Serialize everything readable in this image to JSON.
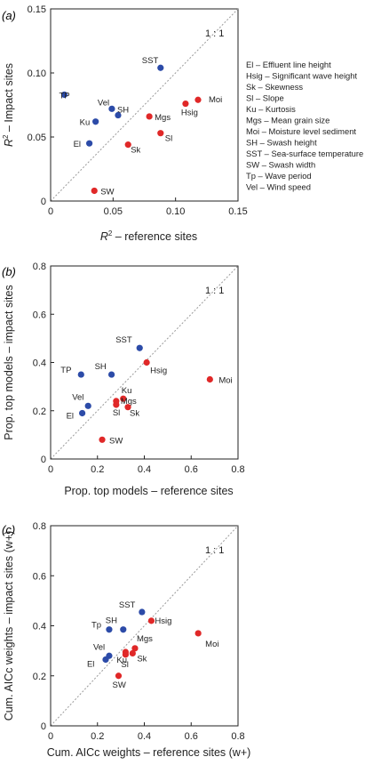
{
  "colors": {
    "impact": "#e02828",
    "reference": "#2c4ba8",
    "axis": "#222222",
    "diagonal": "#9a9a9a"
  },
  "legend": [
    "El – Effluent line height",
    "Hsig – Significant wave height",
    "Sk – Skewness",
    "Sl – Slope",
    "Ku – Kurtosis",
    "Mgs – Mean grain size",
    "Moi – Moisture level sediment",
    "SH – Swash height",
    "SST – Sea-surface temperature",
    "SW – Swash width",
    "Tp – Wave period",
    "Vel – Wind speed"
  ],
  "chart_data": [
    {
      "type": "scatter",
      "panel": "(a)",
      "xlabel_pre": "R",
      "xlabel_sup": "2",
      "xlabel_post": " – reference sites",
      "ylabel_pre": "R",
      "ylabel_sup": "2",
      "ylabel_post": " – Impact sites",
      "xlim": [
        0,
        0.15
      ],
      "ylim": [
        0,
        0.15
      ],
      "xticks": [
        0,
        0.05,
        0.1,
        0.15
      ],
      "yticks": [
        0,
        0.05,
        0.1,
        0.15
      ],
      "xtick_labels": [
        "0",
        "0.05",
        "0.10",
        "0.15"
      ],
      "ytick_labels": [
        "0",
        "0.05",
        "0.10",
        "0.15"
      ],
      "diag_label": "1 : 1",
      "points": [
        {
          "label": "SST",
          "x": 0.088,
          "y": 0.104,
          "group": "reference"
        },
        {
          "label": "TP",
          "x": 0.011,
          "y": 0.083,
          "group": "reference"
        },
        {
          "label": "Vel",
          "x": 0.049,
          "y": 0.072,
          "group": "reference"
        },
        {
          "label": "SH",
          "x": 0.054,
          "y": 0.067,
          "group": "reference"
        },
        {
          "label": "Ku",
          "x": 0.036,
          "y": 0.062,
          "group": "reference"
        },
        {
          "label": "El",
          "x": 0.031,
          "y": 0.045,
          "group": "reference"
        },
        {
          "label": "Moi",
          "x": 0.118,
          "y": 0.079,
          "group": "impact"
        },
        {
          "label": "Hsig",
          "x": 0.108,
          "y": 0.076,
          "group": "impact"
        },
        {
          "label": "Mgs",
          "x": 0.079,
          "y": 0.066,
          "group": "impact"
        },
        {
          "label": "Sl",
          "x": 0.088,
          "y": 0.053,
          "group": "impact"
        },
        {
          "label": "Sk",
          "x": 0.062,
          "y": 0.044,
          "group": "impact"
        },
        {
          "label": "SW",
          "x": 0.035,
          "y": 0.008,
          "group": "impact"
        }
      ]
    },
    {
      "type": "scatter",
      "panel": "(b)",
      "xlabel_pre": "Prop. top models – reference sites",
      "xlabel_sup": "",
      "xlabel_post": "",
      "ylabel_pre": "Prop. top models – impact sites",
      "ylabel_sup": "",
      "ylabel_post": "",
      "xlim": [
        0,
        0.8
      ],
      "ylim": [
        0,
        0.8
      ],
      "xticks": [
        0,
        0.2,
        0.4,
        0.6,
        0.8
      ],
      "yticks": [
        0,
        0.2,
        0.4,
        0.6,
        0.8
      ],
      "xtick_labels": [
        "0",
        "0.2",
        "0.4",
        "0.6",
        "0.8"
      ],
      "ytick_labels": [
        "0",
        "0.2",
        "0.4",
        "0.6",
        "0.8"
      ],
      "diag_label": "1 : 1",
      "points": [
        {
          "label": "SST",
          "x": 0.38,
          "y": 0.46,
          "group": "reference"
        },
        {
          "label": "TP",
          "x": 0.13,
          "y": 0.35,
          "group": "reference"
        },
        {
          "label": "SH",
          "x": 0.26,
          "y": 0.35,
          "group": "reference"
        },
        {
          "label": "Vel",
          "x": 0.16,
          "y": 0.22,
          "group": "reference"
        },
        {
          "label": "El",
          "x": 0.135,
          "y": 0.19,
          "group": "reference"
        },
        {
          "label": "Hsig",
          "x": 0.41,
          "y": 0.4,
          "group": "impact"
        },
        {
          "label": "Moi",
          "x": 0.68,
          "y": 0.33,
          "group": "impact"
        },
        {
          "label": "Ku",
          "x": 0.31,
          "y": 0.25,
          "group": "impact"
        },
        {
          "label": "Mgs",
          "x": 0.28,
          "y": 0.24,
          "group": "impact"
        },
        {
          "label": "Sl",
          "x": 0.28,
          "y": 0.225,
          "group": "impact"
        },
        {
          "label": "Sk",
          "x": 0.33,
          "y": 0.215,
          "group": "impact"
        },
        {
          "label": "SW",
          "x": 0.22,
          "y": 0.08,
          "group": "impact"
        }
      ]
    },
    {
      "type": "scatter",
      "panel": "(c)",
      "xlabel_pre": "Cum. AICc weights – reference sites (w+)",
      "xlabel_sup": "",
      "xlabel_post": "",
      "ylabel_pre": "Cum. AICc weights – impact sites (w+)",
      "ylabel_sup": "",
      "ylabel_post": "",
      "xlim": [
        0,
        0.8
      ],
      "ylim": [
        0,
        0.8
      ],
      "xticks": [
        0,
        0.2,
        0.4,
        0.6,
        0.8
      ],
      "yticks": [
        0,
        0.2,
        0.4,
        0.6,
        0.8
      ],
      "xtick_labels": [
        "0",
        "0.2",
        "0.4",
        "0.6",
        "0.8"
      ],
      "ytick_labels": [
        "0",
        "0.2",
        "0.4",
        "0.6",
        "0.8"
      ],
      "diag_label": "1 : 1",
      "points": [
        {
          "label": "SST",
          "x": 0.39,
          "y": 0.455,
          "group": "reference"
        },
        {
          "label": "SH",
          "x": 0.31,
          "y": 0.385,
          "group": "reference"
        },
        {
          "label": "Tp",
          "x": 0.25,
          "y": 0.385,
          "group": "reference"
        },
        {
          "label": "Vel",
          "x": 0.25,
          "y": 0.28,
          "group": "reference"
        },
        {
          "label": "El",
          "x": 0.235,
          "y": 0.265,
          "group": "reference"
        },
        {
          "label": "Hsig",
          "x": 0.43,
          "y": 0.42,
          "group": "impact"
        },
        {
          "label": "Moi",
          "x": 0.63,
          "y": 0.37,
          "group": "impact"
        },
        {
          "label": "Mgs",
          "x": 0.36,
          "y": 0.31,
          "group": "impact"
        },
        {
          "label": "Ku",
          "x": 0.32,
          "y": 0.295,
          "group": "impact"
        },
        {
          "label": "Sk",
          "x": 0.35,
          "y": 0.29,
          "group": "impact"
        },
        {
          "label": "Sl",
          "x": 0.32,
          "y": 0.285,
          "group": "impact"
        },
        {
          "label": "SW",
          "x": 0.29,
          "y": 0.2,
          "group": "impact"
        }
      ]
    }
  ]
}
